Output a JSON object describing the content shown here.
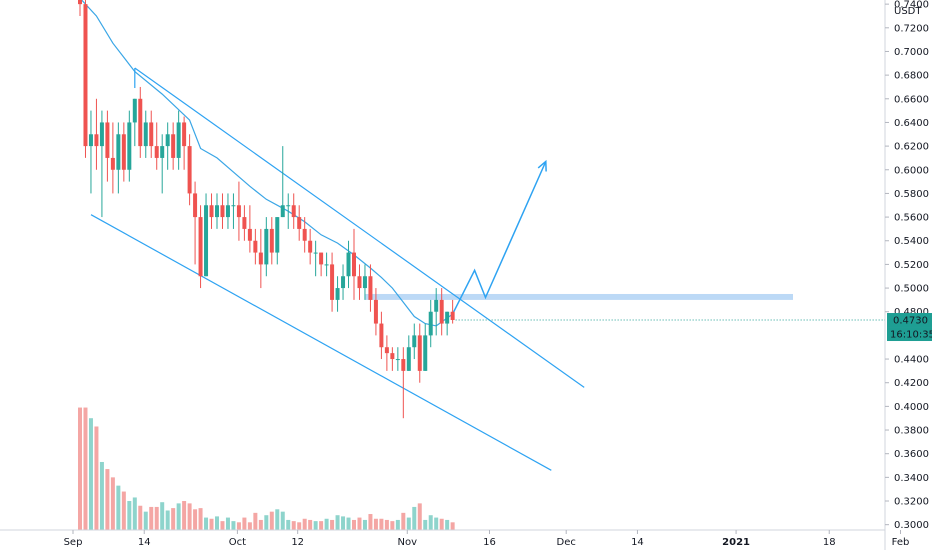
{
  "chart_data": {
    "type": "candlestick",
    "currency": "USDT",
    "y_axis": {
      "ticks": [
        "0.7400",
        "0.7200",
        "0.7000",
        "0.6800",
        "0.6600",
        "0.6400",
        "0.6200",
        "0.6000",
        "0.5800",
        "0.5600",
        "0.5400",
        "0.5200",
        "0.5000",
        "0.4800",
        "0.4400",
        "0.4200",
        "0.4000",
        "0.3800",
        "0.3600",
        "0.3400",
        "0.3200",
        "0.3000"
      ],
      "range": [
        0.2955,
        0.7435
      ]
    },
    "x_axis": {
      "ticks": [
        {
          "label": "Sep",
          "bar": 0,
          "bold": false
        },
        {
          "label": "14",
          "bar": 13,
          "bold": false
        },
        {
          "label": "Oct",
          "bar": 30,
          "bold": false
        },
        {
          "label": "12",
          "bar": 41,
          "bold": false
        },
        {
          "label": "Nov",
          "bar": 61,
          "bold": false
        },
        {
          "label": "16",
          "bar": 76,
          "bold": false
        },
        {
          "label": "Dec",
          "bar": 90,
          "bold": false
        },
        {
          "label": "14",
          "bar": 103,
          "bold": false
        },
        {
          "label": "2021",
          "bar": 121,
          "bold": true
        },
        {
          "label": "18",
          "bar": 138,
          "bold": false
        },
        {
          "label": "Feb",
          "bar": 151,
          "bold": false
        }
      ]
    },
    "price_label": "0.4730",
    "countdown_label": "16:10:35",
    "candles": [
      [
        0.81,
        0.83,
        0.73,
        0.74
      ],
      [
        0.74,
        0.75,
        0.61,
        0.62
      ],
      [
        0.62,
        0.65,
        0.58,
        0.63
      ],
      [
        0.63,
        0.66,
        0.6,
        0.62
      ],
      [
        0.62,
        0.65,
        0.56,
        0.64
      ],
      [
        0.64,
        0.65,
        0.59,
        0.61
      ],
      [
        0.61,
        0.64,
        0.58,
        0.6
      ],
      [
        0.6,
        0.64,
        0.58,
        0.63
      ],
      [
        0.63,
        0.64,
        0.59,
        0.6
      ],
      [
        0.6,
        0.65,
        0.59,
        0.64
      ],
      [
        0.64,
        0.66,
        0.62,
        0.66
      ],
      [
        0.66,
        0.67,
        0.61,
        0.62
      ],
      [
        0.62,
        0.65,
        0.61,
        0.64
      ],
      [
        0.64,
        0.65,
        0.61,
        0.62
      ],
      [
        0.62,
        0.64,
        0.6,
        0.61
      ],
      [
        0.61,
        0.63,
        0.58,
        0.62
      ],
      [
        0.62,
        0.64,
        0.6,
        0.63
      ],
      [
        0.63,
        0.64,
        0.6,
        0.61
      ],
      [
        0.61,
        0.65,
        0.6,
        0.64
      ],
      [
        0.64,
        0.645,
        0.6,
        0.62
      ],
      [
        0.62,
        0.63,
        0.57,
        0.58
      ],
      [
        0.58,
        0.59,
        0.52,
        0.56
      ],
      [
        0.56,
        0.57,
        0.5,
        0.51
      ],
      [
        0.51,
        0.58,
        0.51,
        0.57
      ],
      [
        0.57,
        0.58,
        0.55,
        0.56
      ],
      [
        0.56,
        0.58,
        0.55,
        0.57
      ],
      [
        0.57,
        0.58,
        0.55,
        0.56
      ],
      [
        0.56,
        0.58,
        0.55,
        0.57
      ],
      [
        0.57,
        0.58,
        0.55,
        0.57
      ],
      [
        0.57,
        0.59,
        0.54,
        0.56
      ],
      [
        0.56,
        0.57,
        0.54,
        0.55
      ],
      [
        0.55,
        0.57,
        0.53,
        0.54
      ],
      [
        0.54,
        0.55,
        0.52,
        0.53
      ],
      [
        0.53,
        0.55,
        0.5,
        0.52
      ],
      [
        0.52,
        0.56,
        0.51,
        0.55
      ],
      [
        0.55,
        0.56,
        0.52,
        0.53
      ],
      [
        0.53,
        0.56,
        0.52,
        0.56
      ],
      [
        0.56,
        0.62,
        0.56,
        0.57
      ],
      [
        0.57,
        0.58,
        0.55,
        0.57
      ],
      [
        0.57,
        0.58,
        0.55,
        0.56
      ],
      [
        0.56,
        0.57,
        0.54,
        0.55
      ],
      [
        0.55,
        0.56,
        0.53,
        0.54
      ],
      [
        0.54,
        0.55,
        0.52,
        0.53
      ],
      [
        0.53,
        0.54,
        0.51,
        0.53
      ],
      [
        0.53,
        0.53,
        0.51,
        0.52
      ],
      [
        0.52,
        0.53,
        0.51,
        0.52
      ],
      [
        0.52,
        0.53,
        0.48,
        0.49
      ],
      [
        0.49,
        0.51,
        0.48,
        0.5
      ],
      [
        0.5,
        0.52,
        0.49,
        0.51
      ],
      [
        0.51,
        0.54,
        0.5,
        0.53
      ],
      [
        0.53,
        0.55,
        0.49,
        0.51
      ],
      [
        0.51,
        0.52,
        0.49,
        0.5
      ],
      [
        0.5,
        0.52,
        0.49,
        0.51
      ],
      [
        0.51,
        0.52,
        0.48,
        0.49
      ],
      [
        0.49,
        0.5,
        0.46,
        0.47
      ],
      [
        0.47,
        0.48,
        0.44,
        0.45
      ],
      [
        0.45,
        0.46,
        0.43,
        0.445
      ],
      [
        0.445,
        0.45,
        0.43,
        0.44
      ],
      [
        0.44,
        0.45,
        0.43,
        0.44
      ],
      [
        0.44,
        0.45,
        0.39,
        0.43
      ],
      [
        0.43,
        0.46,
        0.43,
        0.45
      ],
      [
        0.45,
        0.47,
        0.44,
        0.46
      ],
      [
        0.46,
        0.47,
        0.42,
        0.43
      ],
      [
        0.43,
        0.47,
        0.43,
        0.46
      ],
      [
        0.46,
        0.49,
        0.45,
        0.48
      ],
      [
        0.48,
        0.5,
        0.46,
        0.49
      ],
      [
        0.49,
        0.5,
        0.46,
        0.47
      ],
      [
        0.47,
        0.48,
        0.46,
        0.48
      ],
      [
        0.48,
        0.49,
        0.47,
        0.473
      ]
    ],
    "volumes": [
      0.399,
      0.399,
      0.39,
      0.383,
      0.353,
      0.347,
      0.34,
      0.333,
      0.328,
      0.32,
      0.323,
      0.316,
      0.311,
      0.315,
      0.315,
      0.319,
      0.312,
      0.314,
      0.318,
      0.32,
      0.318,
      0.313,
      0.314,
      0.306,
      0.305,
      0.307,
      0.303,
      0.306,
      0.303,
      0.302,
      0.306,
      0.302,
      0.31,
      0.304,
      0.308,
      0.311,
      0.313,
      0.311,
      0.304,
      0.303,
      0.302,
      0.305,
      0.304,
      0.303,
      0.303,
      0.305,
      0.304,
      0.308,
      0.307,
      0.306,
      0.304,
      0.306,
      0.304,
      0.309,
      0.305,
      0.305,
      0.304,
      0.303,
      0.304,
      0.31,
      0.306,
      0.315,
      0.318,
      0.304,
      0.308,
      0.306,
      0.305,
      0.304,
      0.302
    ],
    "moving_average": [
      [
        0,
        0.745
      ],
      [
        3,
        0.73
      ],
      [
        6,
        0.707
      ],
      [
        10,
        0.683
      ],
      [
        15,
        0.664
      ],
      [
        20,
        0.642
      ],
      [
        22,
        0.618
      ],
      [
        25,
        0.61
      ],
      [
        28,
        0.598
      ],
      [
        31,
        0.586
      ],
      [
        34,
        0.575
      ],
      [
        38,
        0.565
      ],
      [
        41,
        0.556
      ],
      [
        44,
        0.545
      ],
      [
        47,
        0.538
      ],
      [
        50,
        0.528
      ],
      [
        53,
        0.517
      ],
      [
        55,
        0.509
      ],
      [
        57,
        0.5
      ],
      [
        59,
        0.488
      ],
      [
        61,
        0.476
      ],
      [
        63,
        0.47
      ],
      [
        65,
        0.468
      ],
      [
        68,
        0.478
      ]
    ],
    "channel_upper": [
      [
        10,
        0.686
      ],
      [
        92,
        0.416
      ]
    ],
    "channel_lower": [
      [
        2,
        0.562
      ],
      [
        86,
        0.346
      ]
    ],
    "resistance_zone": [
      0.49,
      0.495
    ],
    "projection_path": [
      [
        68,
        0.478
      ],
      [
        72,
        0.515
      ],
      [
        74,
        0.492
      ],
      [
        85,
        0.607
      ]
    ],
    "colors": {
      "up": "#26a69a",
      "down": "#ef5350",
      "volume_up": "#8ed4cc",
      "volume_down": "#f4a6a4",
      "drawing": "#2ea3f2",
      "moving_average": "#3aa6e6",
      "zone": "#bcd9f6",
      "price_tag": "#1e9e93"
    }
  }
}
